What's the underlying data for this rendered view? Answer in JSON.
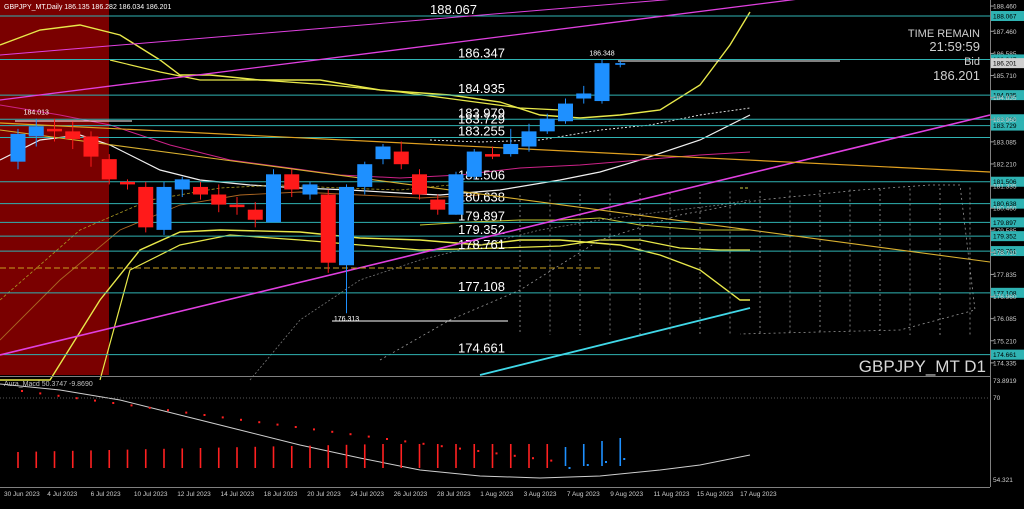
{
  "header": {
    "symbol_info": "GBPJPY_MT,Daily  186.135 186.282 186.034 186.201"
  },
  "overlay": {
    "time_remain_label": "TIME REMAIN",
    "time_remain_value": "21:59:59",
    "bid_label": "Bid",
    "bid_value": "186.201",
    "symbol_watermark": "GBPJPY_MT D1"
  },
  "level_labels": [
    {
      "price": 188.067,
      "text": "188.067"
    },
    {
      "price": 186.347,
      "text": "186.347"
    },
    {
      "price": 184.935,
      "text": "184.935"
    },
    {
      "price": 183.979,
      "text": "183.979"
    },
    {
      "price": 183.729,
      "text": "183.729"
    },
    {
      "price": 183.255,
      "text": "183.255"
    },
    {
      "price": 181.506,
      "text": "181.506"
    },
    {
      "price": 180.638,
      "text": "180.638"
    },
    {
      "price": 179.897,
      "text": "179.897"
    },
    {
      "price": 179.352,
      "text": "179.352"
    },
    {
      "price": 178.761,
      "text": "178.761"
    },
    {
      "price": 177.108,
      "text": "177.108"
    },
    {
      "price": 174.661,
      "text": "174.661"
    }
  ],
  "price_annotations": [
    {
      "text": "184.013",
      "price": 184.013,
      "bar": 1
    },
    {
      "text": "186.348",
      "price": 186.348,
      "bar": 32
    },
    {
      "text": "176.313",
      "price": 176.313,
      "bar": 18
    }
  ],
  "price_axis_labels": [
    "188.460",
    "188.067",
    "187.460",
    "186.585",
    "186.347",
    "186.201",
    "185.710",
    "184.935",
    "184.835",
    "183.979",
    "183.729",
    "183.960",
    "183.085",
    "182.210",
    "181.506",
    "181.335",
    "180.638",
    "180.460",
    "179.897",
    "179.585",
    "179.352",
    "178.761",
    "178.710",
    "177.835",
    "177.108",
    "176.960",
    "176.085",
    "175.210",
    "174.661",
    "174.335"
  ],
  "indicator": {
    "title": "Aura_Macd 50.3747 -9.8690",
    "axis_labels": [
      "73.8919",
      "70",
      "54.321"
    ]
  },
  "time_axis_labels": [
    "30 Jun 2023",
    "4 Jul 2023",
    "6 Jul 2023",
    "10 Jul 2023",
    "12 Jul 2023",
    "14 Jul 2023",
    "18 Jul 2023",
    "20 Jul 2023",
    "24 Jul 2023",
    "26 Jul 2023",
    "28 Jul 2023",
    "1 Aug 2023",
    "3 Aug 2023",
    "7 Aug 2023",
    "9 Aug 2023",
    "11 Aug 2023",
    "15 Aug 2023",
    "17 Aug 2023"
  ],
  "chart_data": {
    "type": "candlestick",
    "symbol": "GBPJPY_MT",
    "timeframe": "D1",
    "ylim": [
      174.0,
      188.7
    ],
    "candles": [
      {
        "o": 182.3,
        "h": 183.6,
        "l": 182.0,
        "c": 183.4
      },
      {
        "o": 183.3,
        "h": 184.0,
        "l": 182.9,
        "c": 183.7
      },
      {
        "o": 183.6,
        "h": 184.0,
        "l": 183.1,
        "c": 183.5
      },
      {
        "o": 183.5,
        "h": 183.9,
        "l": 182.8,
        "c": 183.2
      },
      {
        "o": 183.3,
        "h": 183.5,
        "l": 182.1,
        "c": 182.5
      },
      {
        "o": 182.4,
        "h": 182.6,
        "l": 181.4,
        "c": 181.6
      },
      {
        "o": 181.5,
        "h": 181.6,
        "l": 181.2,
        "c": 181.4
      },
      {
        "o": 181.3,
        "h": 181.5,
        "l": 179.5,
        "c": 179.7
      },
      {
        "o": 179.6,
        "h": 181.5,
        "l": 179.4,
        "c": 181.3
      },
      {
        "o": 181.2,
        "h": 181.7,
        "l": 180.9,
        "c": 181.6
      },
      {
        "o": 181.3,
        "h": 181.5,
        "l": 180.8,
        "c": 181.0
      },
      {
        "o": 181.0,
        "h": 181.4,
        "l": 180.3,
        "c": 180.6
      },
      {
        "o": 180.6,
        "h": 180.9,
        "l": 180.2,
        "c": 180.5
      },
      {
        "o": 180.4,
        "h": 180.7,
        "l": 179.7,
        "c": 180.0
      },
      {
        "o": 179.9,
        "h": 182.0,
        "l": 179.9,
        "c": 181.8
      },
      {
        "o": 181.8,
        "h": 182.0,
        "l": 180.9,
        "c": 181.2
      },
      {
        "o": 181.0,
        "h": 181.5,
        "l": 180.8,
        "c": 181.4
      },
      {
        "o": 181.0,
        "h": 181.2,
        "l": 177.9,
        "c": 178.3
      },
      {
        "o": 178.2,
        "h": 181.4,
        "l": 176.3,
        "c": 181.3
      },
      {
        "o": 181.3,
        "h": 182.3,
        "l": 181.0,
        "c": 182.2
      },
      {
        "o": 182.4,
        "h": 183.0,
        "l": 182.2,
        "c": 182.9
      },
      {
        "o": 182.7,
        "h": 183.1,
        "l": 182.0,
        "c": 182.2
      },
      {
        "o": 181.8,
        "h": 182.0,
        "l": 180.8,
        "c": 181.0
      },
      {
        "o": 180.8,
        "h": 181.0,
        "l": 180.2,
        "c": 180.4
      },
      {
        "o": 180.2,
        "h": 181.9,
        "l": 180.2,
        "c": 181.8
      },
      {
        "o": 181.7,
        "h": 182.8,
        "l": 181.6,
        "c": 182.7
      },
      {
        "o": 182.6,
        "h": 182.9,
        "l": 182.4,
        "c": 182.5
      },
      {
        "o": 182.6,
        "h": 183.6,
        "l": 182.5,
        "c": 183.0
      },
      {
        "o": 182.9,
        "h": 183.8,
        "l": 182.7,
        "c": 183.5
      },
      {
        "o": 183.5,
        "h": 184.2,
        "l": 183.4,
        "c": 184.0
      },
      {
        "o": 183.9,
        "h": 184.8,
        "l": 183.8,
        "c": 184.6
      },
      {
        "o": 184.8,
        "h": 185.3,
        "l": 184.6,
        "c": 185.0
      },
      {
        "o": 184.7,
        "h": 186.348,
        "l": 184.6,
        "c": 186.2
      },
      {
        "o": 186.135,
        "h": 186.282,
        "l": 186.034,
        "c": 186.201
      }
    ]
  }
}
